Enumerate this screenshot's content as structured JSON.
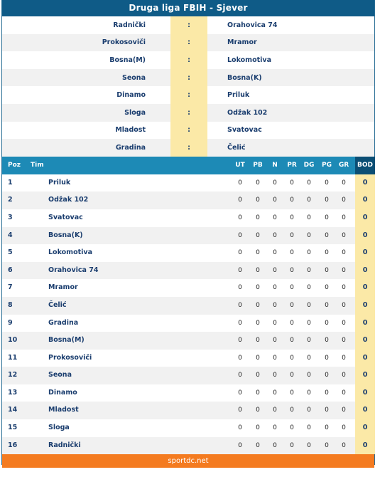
{
  "title": "Druga liga FBIH - Sjever",
  "fixtures": [
    {
      "home": "Radnički",
      "score": ":",
      "away": "Orahovica 74"
    },
    {
      "home": "Prokosoviči",
      "score": ":",
      "away": "Mramor"
    },
    {
      "home": "Bosna(M)",
      "score": ":",
      "away": "Lokomotiva"
    },
    {
      "home": "Seona",
      "score": ":",
      "away": "Bosna(K)"
    },
    {
      "home": "Dinamo",
      "score": ":",
      "away": "Priluk"
    },
    {
      "home": "Sloga",
      "score": ":",
      "away": "Odžak 102"
    },
    {
      "home": "Mladost",
      "score": ":",
      "away": "Svatovac"
    },
    {
      "home": "Gradina",
      "score": ":",
      "away": "Čelić"
    }
  ],
  "table_headers": {
    "poz": "Poz",
    "tim": "Tim",
    "ut": "UT",
    "pb": "PB",
    "n": "N",
    "pr": "PR",
    "dg": "DG",
    "pg": "PG",
    "gr": "GR",
    "bod": "BOD"
  },
  "standings": [
    {
      "poz": "1",
      "tim": "Priluk",
      "ut": "0",
      "pb": "0",
      "n": "0",
      "pr": "0",
      "dg": "0",
      "pg": "0",
      "gr": "0",
      "bod": "0"
    },
    {
      "poz": "2",
      "tim": "Odžak 102",
      "ut": "0",
      "pb": "0",
      "n": "0",
      "pr": "0",
      "dg": "0",
      "pg": "0",
      "gr": "0",
      "bod": "0"
    },
    {
      "poz": "3",
      "tim": "Svatovac",
      "ut": "0",
      "pb": "0",
      "n": "0",
      "pr": "0",
      "dg": "0",
      "pg": "0",
      "gr": "0",
      "bod": "0"
    },
    {
      "poz": "4",
      "tim": "Bosna(K)",
      "ut": "0",
      "pb": "0",
      "n": "0",
      "pr": "0",
      "dg": "0",
      "pg": "0",
      "gr": "0",
      "bod": "0"
    },
    {
      "poz": "5",
      "tim": "Lokomotiva",
      "ut": "0",
      "pb": "0",
      "n": "0",
      "pr": "0",
      "dg": "0",
      "pg": "0",
      "gr": "0",
      "bod": "0"
    },
    {
      "poz": "6",
      "tim": "Orahovica 74",
      "ut": "0",
      "pb": "0",
      "n": "0",
      "pr": "0",
      "dg": "0",
      "pg": "0",
      "gr": "0",
      "bod": "0"
    },
    {
      "poz": "7",
      "tim": "Mramor",
      "ut": "0",
      "pb": "0",
      "n": "0",
      "pr": "0",
      "dg": "0",
      "pg": "0",
      "gr": "0",
      "bod": "0"
    },
    {
      "poz": "8",
      "tim": "Čelić",
      "ut": "0",
      "pb": "0",
      "n": "0",
      "pr": "0",
      "dg": "0",
      "pg": "0",
      "gr": "0",
      "bod": "0"
    },
    {
      "poz": "9",
      "tim": "Gradina",
      "ut": "0",
      "pb": "0",
      "n": "0",
      "pr": "0",
      "dg": "0",
      "pg": "0",
      "gr": "0",
      "bod": "0"
    },
    {
      "poz": "10",
      "tim": "Bosna(M)",
      "ut": "0",
      "pb": "0",
      "n": "0",
      "pr": "0",
      "dg": "0",
      "pg": "0",
      "gr": "0",
      "bod": "0"
    },
    {
      "poz": "11",
      "tim": "Prokosoviči",
      "ut": "0",
      "pb": "0",
      "n": "0",
      "pr": "0",
      "dg": "0",
      "pg": "0",
      "gr": "0",
      "bod": "0"
    },
    {
      "poz": "12",
      "tim": "Seona",
      "ut": "0",
      "pb": "0",
      "n": "0",
      "pr": "0",
      "dg": "0",
      "pg": "0",
      "gr": "0",
      "bod": "0"
    },
    {
      "poz": "13",
      "tim": "Dinamo",
      "ut": "0",
      "pb": "0",
      "n": "0",
      "pr": "0",
      "dg": "0",
      "pg": "0",
      "gr": "0",
      "bod": "0"
    },
    {
      "poz": "14",
      "tim": "Mladost",
      "ut": "0",
      "pb": "0",
      "n": "0",
      "pr": "0",
      "dg": "0",
      "pg": "0",
      "gr": "0",
      "bod": "0"
    },
    {
      "poz": "15",
      "tim": "Sloga",
      "ut": "0",
      "pb": "0",
      "n": "0",
      "pr": "0",
      "dg": "0",
      "pg": "0",
      "gr": "0",
      "bod": "0"
    },
    {
      "poz": "16",
      "tim": "Radnički",
      "ut": "0",
      "pb": "0",
      "n": "0",
      "pr": "0",
      "dg": "0",
      "pg": "0",
      "gr": "0",
      "bod": "0"
    }
  ],
  "footer": "sportdc.net",
  "colors": {
    "header_blue": "#0f5b87",
    "table_head_blue": "#1d8ab6",
    "highlight_yellow": "#fbe9a7",
    "footer_orange": "#f47b20"
  }
}
